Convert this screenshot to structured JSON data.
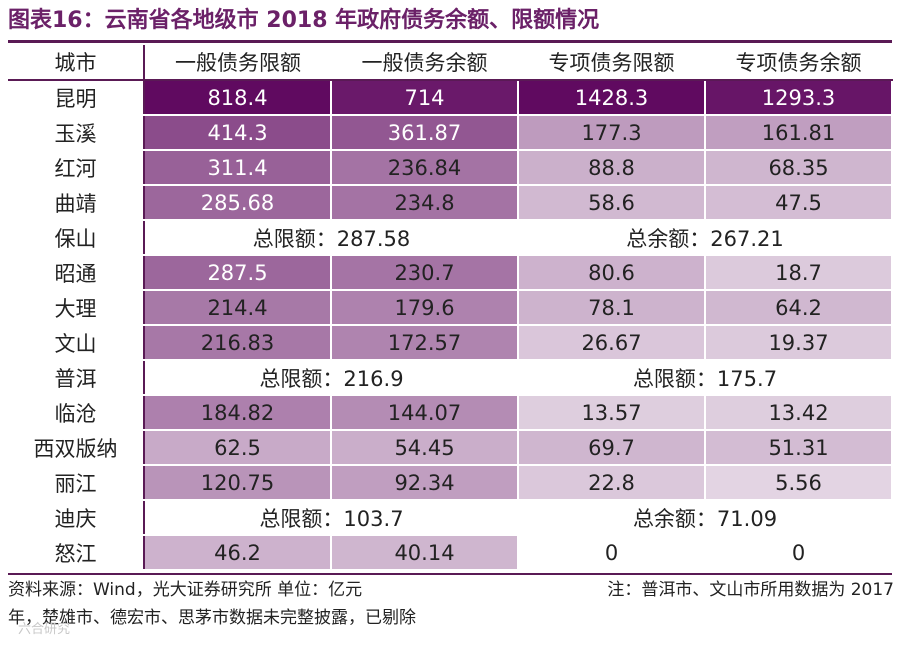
{
  "title": "图表16：云南省各地级市 2018 年政府债务余额、限额情况",
  "columns": [
    "城市",
    "一般债务限额",
    "一般债务余额",
    "专项债务限额",
    "专项债务余额"
  ],
  "rows": [
    {
      "city": "昆明",
      "values": [
        "818.4",
        "714",
        "1428.3",
        "1293.3"
      ]
    },
    {
      "city": "玉溪",
      "values": [
        "414.3",
        "361.87",
        "177.3",
        "161.81"
      ]
    },
    {
      "city": "红河",
      "values": [
        "311.4",
        "236.84",
        "88.8",
        "68.35"
      ]
    },
    {
      "city": "曲靖",
      "values": [
        "285.68",
        "234.8",
        "58.6",
        "47.5"
      ]
    },
    {
      "city": "保山",
      "merged": [
        "总限额：287.58",
        "总余额：267.21"
      ]
    },
    {
      "city": "昭通",
      "values": [
        "287.5",
        "230.7",
        "80.6",
        "18.7"
      ]
    },
    {
      "city": "大理",
      "values": [
        "214.4",
        "179.6",
        "78.1",
        "64.2"
      ]
    },
    {
      "city": "文山",
      "values": [
        "216.83",
        "172.57",
        "26.67",
        "19.37"
      ]
    },
    {
      "city": "普洱",
      "merged": [
        "总限额：216.9",
        "总限额：175.7"
      ]
    },
    {
      "city": "临沧",
      "values": [
        "184.82",
        "144.07",
        "13.57",
        "13.42"
      ]
    },
    {
      "city": "西双版纳",
      "values": [
        "62.5",
        "54.45",
        "69.7",
        "51.31"
      ]
    },
    {
      "city": "丽江",
      "values": [
        "120.75",
        "92.34",
        "22.8",
        "5.56"
      ]
    },
    {
      "city": "迪庆",
      "merged": [
        "总限额：103.7",
        "总余额：71.09"
      ]
    },
    {
      "city": "怒江",
      "values": [
        "46.2",
        "40.14",
        "0",
        "0"
      ]
    }
  ],
  "heat": {
    "max_general": 818.4,
    "max_special": 1428.3,
    "color_rgb": [
      96,
      10,
      96
    ],
    "light_rgb": [
      233,
      222,
      233
    ]
  },
  "footer": {
    "source": "资料来源：Wind，光大证券研究所  单位：亿元",
    "note_1": "注：普洱市、文山市所用数据为 2017",
    "note_2": "年，楚雄市、德宏市、思茅市数据未完整披露，已剔除"
  },
  "watermark": "六合研究"
}
